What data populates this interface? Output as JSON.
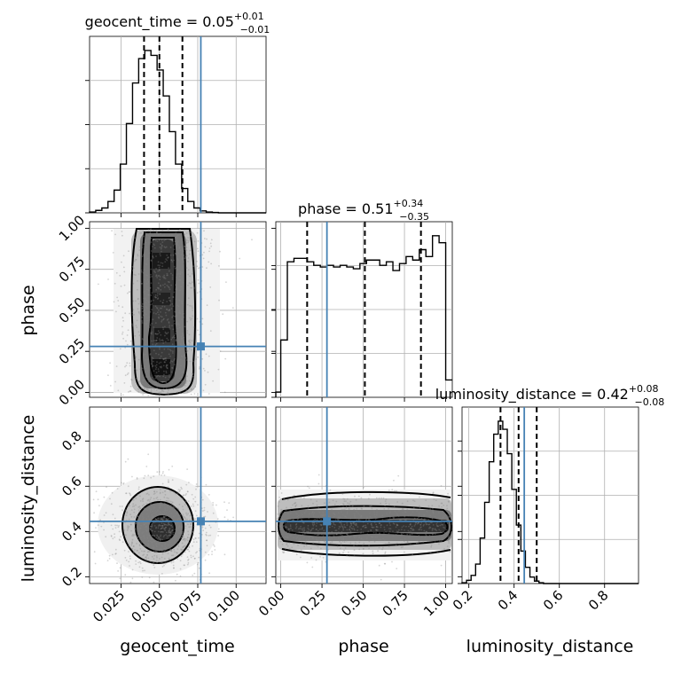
{
  "chart_data": {
    "type": "corner",
    "parameters": [
      "geocent_time",
      "phase",
      "luminosity_distance"
    ],
    "truths": {
      "geocent_time": 0.077,
      "phase": 0.28,
      "luminosity_distance": 0.445
    },
    "titles": {
      "geocent_time": {
        "text": "geocent_time = 0.05",
        "plus": "+0.01",
        "minus": "−0.01"
      },
      "phase": {
        "text": "phase = 0.51",
        "plus": "+0.34",
        "minus": "−0.35"
      },
      "luminosity_distance": {
        "text": "luminosity_distance = 0.42",
        "plus": "+0.08",
        "minus": "−0.08"
      }
    },
    "axis_labels": {
      "geocent_time": "geocent_time",
      "phase": "phase",
      "luminosity_distance": "luminosity_distance"
    },
    "ranges": {
      "geocent_time": [
        0.0045,
        0.1195
      ],
      "phase": [
        -0.03,
        1.04
      ],
      "luminosity_distance": [
        0.17,
        0.95
      ]
    },
    "ticks": {
      "geocent_time": [
        "0.025",
        "0.050",
        "0.075",
        "0.100"
      ],
      "phase": [
        "0.00",
        "0.25",
        "0.50",
        "0.75",
        "1.00"
      ],
      "luminosity_distance": [
        "0.2",
        "0.4",
        "0.6",
        "0.8"
      ]
    },
    "quantiles": {
      "geocent_time": [
        0.04,
        0.05,
        0.065
      ],
      "phase": [
        0.16,
        0.51,
        0.85
      ],
      "luminosity_distance": [
        0.34,
        0.42,
        0.5
      ]
    },
    "histograms": {
      "geocent_time": {
        "edges": [
          0.0045,
          0.0085,
          0.0125,
          0.0165,
          0.0205,
          0.0245,
          0.0285,
          0.0325,
          0.0365,
          0.0405,
          0.0445,
          0.0485,
          0.0525,
          0.0565,
          0.0605,
          0.0645,
          0.0685,
          0.0725,
          0.0765,
          0.0805,
          0.0845,
          0.0885,
          0.0925,
          0.0965,
          0.1005,
          0.1045,
          0.1085,
          0.1125,
          0.1165,
          0.1195
        ],
        "counts": [
          0.005,
          0.015,
          0.03,
          0.07,
          0.14,
          0.3,
          0.55,
          0.8,
          0.95,
          1.0,
          0.97,
          0.88,
          0.72,
          0.5,
          0.3,
          0.15,
          0.07,
          0.03,
          0.012,
          0.005,
          0.002,
          0,
          0,
          0,
          0,
          0,
          0,
          0,
          0
        ]
      },
      "phase": {
        "edges": [
          -0.03,
          0.0,
          0.04,
          0.08,
          0.12,
          0.16,
          0.2,
          0.24,
          0.28,
          0.32,
          0.36,
          0.4,
          0.44,
          0.48,
          0.52,
          0.56,
          0.6,
          0.64,
          0.68,
          0.72,
          0.76,
          0.8,
          0.84,
          0.88,
          0.92,
          0.96,
          1.0,
          1.04
        ],
        "counts": [
          0.03,
          0.33,
          0.78,
          0.8,
          0.8,
          0.78,
          0.76,
          0.75,
          0.76,
          0.75,
          0.76,
          0.75,
          0.74,
          0.77,
          0.79,
          0.79,
          0.76,
          0.78,
          0.73,
          0.77,
          0.81,
          0.79,
          0.85,
          0.81,
          0.93,
          0.89,
          0.1
        ]
      },
      "luminosity_distance": {
        "edges": [
          0.17,
          0.19,
          0.21,
          0.23,
          0.25,
          0.27,
          0.29,
          0.31,
          0.33,
          0.35,
          0.37,
          0.39,
          0.41,
          0.43,
          0.45,
          0.47,
          0.49,
          0.51,
          0.53,
          0.55,
          0.57,
          0.59,
          0.61,
          0.63,
          0.65,
          0.67,
          0.69,
          0.95
        ],
        "counts": [
          0.005,
          0.02,
          0.05,
          0.12,
          0.28,
          0.5,
          0.75,
          0.92,
          1.0,
          0.95,
          0.8,
          0.58,
          0.36,
          0.2,
          0.1,
          0.04,
          0.015,
          0.005,
          0,
          0,
          0,
          0,
          0,
          0,
          0,
          0,
          0
        ]
      }
    },
    "joint_peaks": {
      "phase_vs_geocent_time": [
        0.053,
        0.5
      ],
      "luminosity_distance_vs_geocent_time": [
        0.053,
        0.42
      ],
      "luminosity_distance_vs_phase": [
        0.5,
        0.42
      ]
    },
    "colors": {
      "truth": "#4682b4",
      "contour": "#000000",
      "hist": "#000000",
      "grid": "#b0b0b0"
    }
  }
}
